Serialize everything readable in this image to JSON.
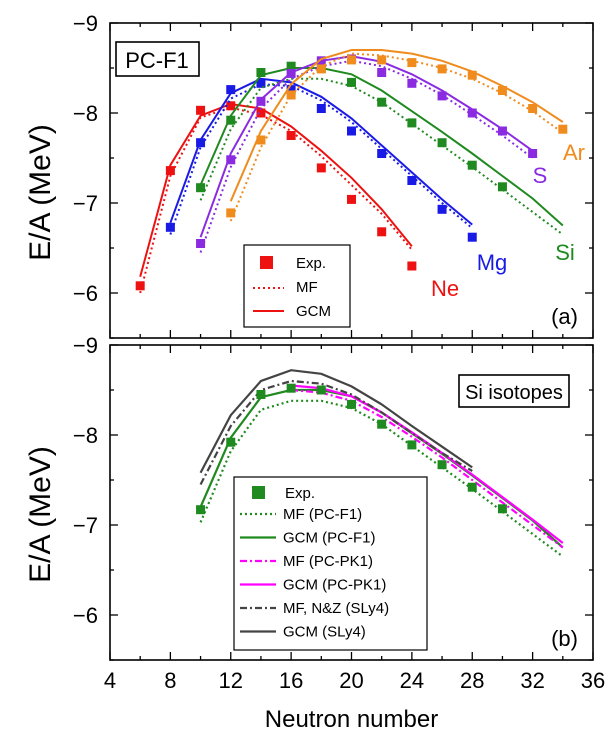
{
  "chart_data": [
    {
      "type": "line",
      "panel_tag": "(a)",
      "box_label": "PC-F1",
      "ylabel": "E/A (MeV)",
      "xlim": [
        4,
        36
      ],
      "ylim": [
        -5.5,
        -9
      ],
      "yticks": [
        -6,
        -7,
        -8,
        -9
      ],
      "yticklabels": [
        "-6",
        "-7",
        "-8",
        "-9"
      ],
      "legend": {
        "placement": "lower-center",
        "entries": [
          "Exp.",
          "MF",
          "GCM"
        ]
      },
      "series": [
        {
          "name": "Ne",
          "color": "#ee1111",
          "exp": {
            "x": [
              6,
              8,
              10,
              12,
              14,
              16,
              18,
              20,
              22,
              24
            ],
            "y": [
              -6.08,
              -7.36,
              -8.03,
              -8.08,
              -8.0,
              -7.75,
              -7.39,
              -7.04,
              -6.68,
              -6.3
            ]
          },
          "mf": {
            "x": [
              6,
              8,
              10,
              12,
              14,
              16,
              18,
              20,
              22,
              24
            ],
            "y": [
              -6.0,
              -7.3,
              -7.95,
              -8.06,
              -7.98,
              -7.8,
              -7.52,
              -7.2,
              -6.88,
              -6.48
            ]
          },
          "gcm": {
            "x": [
              6,
              8,
              10,
              12,
              14,
              16,
              18,
              20,
              22,
              24
            ],
            "y": [
              -6.18,
              -7.42,
              -7.97,
              -8.1,
              -8.05,
              -7.85,
              -7.58,
              -7.28,
              -6.93,
              -6.52
            ]
          }
        },
        {
          "name": "Mg",
          "color": "#1a1ae6",
          "exp": {
            "x": [
              8,
              10,
              12,
              14,
              16,
              18,
              20,
              22,
              24,
              26,
              28
            ],
            "y": [
              -6.73,
              -7.67,
              -8.26,
              -8.33,
              -8.26,
              -8.05,
              -7.8,
              -7.55,
              -7.25,
              -6.93,
              -6.62
            ]
          },
          "mf": {
            "x": [
              8,
              10,
              12,
              14,
              16,
              18,
              20,
              22,
              24,
              26,
              28
            ],
            "y": [
              -6.65,
              -7.62,
              -8.16,
              -8.32,
              -8.3,
              -8.14,
              -7.9,
              -7.6,
              -7.3,
              -7.0,
              -6.72
            ]
          },
          "gcm": {
            "x": [
              8,
              10,
              12,
              14,
              16,
              18,
              20,
              22,
              24,
              26,
              28
            ],
            "y": [
              -6.78,
              -7.7,
              -8.22,
              -8.38,
              -8.34,
              -8.18,
              -7.94,
              -7.64,
              -7.34,
              -7.04,
              -6.76
            ]
          }
        },
        {
          "name": "Si",
          "color": "#1f8a1f",
          "exp": {
            "x": [
              10,
              12,
              14,
              16,
              18,
              20,
              22,
              24,
              26,
              28,
              30
            ],
            "y": [
              -7.17,
              -7.92,
              -8.45,
              -8.52,
              -8.5,
              -8.34,
              -8.12,
              -7.89,
              -7.67,
              -7.42,
              -7.18
            ]
          },
          "mf": {
            "x": [
              10,
              12,
              14,
              16,
              18,
              20,
              22,
              24,
              26,
              28,
              30,
              32,
              34
            ],
            "y": [
              -7.03,
              -7.82,
              -8.28,
              -8.38,
              -8.38,
              -8.3,
              -8.12,
              -7.88,
              -7.64,
              -7.4,
              -7.15,
              -6.9,
              -6.65
            ]
          },
          "gcm": {
            "x": [
              10,
              12,
              14,
              16,
              18,
              20,
              22,
              24,
              26,
              28,
              30,
              32,
              34
            ],
            "y": [
              -7.2,
              -7.97,
              -8.42,
              -8.5,
              -8.5,
              -8.43,
              -8.25,
              -8.02,
              -7.79,
              -7.55,
              -7.3,
              -7.05,
              -6.75
            ]
          }
        },
        {
          "name": "S",
          "color": "#8a2be2",
          "exp": {
            "x": [
              10,
              12,
              14,
              16,
              18,
              20,
              22,
              24,
              26,
              28,
              30,
              32
            ],
            "y": [
              -6.55,
              -7.48,
              -8.13,
              -8.44,
              -8.58,
              -8.6,
              -8.45,
              -8.33,
              -8.19,
              -8.0,
              -7.8,
              -7.55
            ]
          },
          "mf": {
            "x": [
              10,
              12,
              14,
              16,
              18,
              20,
              22,
              24,
              26,
              28,
              30,
              32
            ],
            "y": [
              -6.45,
              -7.4,
              -8.05,
              -8.38,
              -8.52,
              -8.58,
              -8.52,
              -8.38,
              -8.2,
              -7.98,
              -7.75,
              -7.5
            ]
          },
          "gcm": {
            "x": [
              10,
              12,
              14,
              16,
              18,
              20,
              22,
              24,
              26,
              28,
              30,
              32
            ],
            "y": [
              -6.62,
              -7.55,
              -8.15,
              -8.45,
              -8.58,
              -8.63,
              -8.57,
              -8.43,
              -8.25,
              -8.04,
              -7.82,
              -7.58
            ]
          }
        },
        {
          "name": "Ar",
          "color": "#f08c1e",
          "exp": {
            "x": [
              12,
              14,
              16,
              18,
              20,
              22,
              24,
              26,
              28,
              30,
              32,
              34
            ],
            "y": [
              -6.89,
              -7.7,
              -8.2,
              -8.49,
              -8.59,
              -8.59,
              -8.56,
              -8.49,
              -8.42,
              -8.25,
              -8.05,
              -7.82
            ]
          },
          "mf": {
            "x": [
              12,
              14,
              16,
              18,
              20,
              22,
              24,
              26,
              28,
              30,
              32,
              34
            ],
            "y": [
              -6.8,
              -7.62,
              -8.2,
              -8.52,
              -8.66,
              -8.64,
              -8.58,
              -8.5,
              -8.38,
              -8.22,
              -8.02,
              -7.78
            ]
          },
          "gcm": {
            "x": [
              12,
              14,
              16,
              18,
              20,
              22,
              24,
              26,
              28,
              30,
              32,
              34
            ],
            "y": [
              -7.02,
              -7.8,
              -8.32,
              -8.6,
              -8.7,
              -8.7,
              -8.66,
              -8.58,
              -8.46,
              -8.3,
              -8.12,
              -7.9
            ]
          }
        }
      ]
    },
    {
      "type": "line",
      "panel_tag": "(b)",
      "box_label": "Si isotopes",
      "xlabel": "Neutron number",
      "ylabel": "E/A (MeV)",
      "xlim": [
        4,
        36
      ],
      "ylim": [
        -5.5,
        -9
      ],
      "xticks": [
        4,
        8,
        12,
        16,
        20,
        24,
        28,
        32,
        36
      ],
      "xticklabels": [
        "4",
        "8",
        "12",
        "16",
        "20",
        "24",
        "28",
        "32",
        "36"
      ],
      "yticks": [
        -6,
        -7,
        -8,
        -9
      ],
      "yticklabels": [
        "-6",
        "-7",
        "-8",
        "-9"
      ],
      "legend": {
        "placement": "lower-center",
        "entries": [
          "Exp.",
          "MF (PC-F1)",
          "GCM (PC-F1)",
          "MF (PC-PK1)",
          "GCM (PC-PK1)",
          "MF, N&Z (SLy4)",
          "GCM (SLy4)"
        ]
      },
      "exp": {
        "name": "Exp.",
        "color": "#1f8a1f",
        "x": [
          10,
          12,
          14,
          16,
          18,
          20,
          22,
          24,
          26,
          28,
          30
        ],
        "y": [
          -7.17,
          -7.92,
          -8.45,
          -8.52,
          -8.5,
          -8.34,
          -8.12,
          -7.89,
          -7.67,
          -7.42,
          -7.18
        ]
      },
      "series": [
        {
          "name": "MF (PC-F1)",
          "color": "#1f8a1f",
          "style": "dotted",
          "x": [
            10,
            12,
            14,
            16,
            18,
            20,
            22,
            24,
            26,
            28,
            30,
            32,
            34
          ],
          "y": [
            -7.03,
            -7.82,
            -8.28,
            -8.38,
            -8.38,
            -8.3,
            -8.12,
            -7.88,
            -7.64,
            -7.4,
            -7.15,
            -6.9,
            -6.65
          ]
        },
        {
          "name": "GCM (PC-F1)",
          "color": "#1f8a1f",
          "style": "solid",
          "x": [
            10,
            12,
            14,
            16,
            18,
            20,
            22,
            24,
            26,
            28,
            30,
            32,
            34
          ],
          "y": [
            -7.2,
            -7.97,
            -8.42,
            -8.5,
            -8.5,
            -8.43,
            -8.25,
            -8.02,
            -7.79,
            -7.55,
            -7.3,
            -7.05,
            -6.75
          ]
        },
        {
          "name": "MF (PC-PK1)",
          "color": "#ff00ff",
          "style": "dashdot",
          "x": [
            16,
            18,
            20,
            22,
            24,
            26,
            28,
            30,
            32,
            34
          ],
          "y": [
            -8.5,
            -8.47,
            -8.38,
            -8.2,
            -7.98,
            -7.75,
            -7.5,
            -7.25,
            -7.0,
            -6.75
          ]
        },
        {
          "name": "GCM (PC-PK1)",
          "color": "#ff00ff",
          "style": "solid",
          "x": [
            16,
            18,
            20,
            22,
            24,
            26,
            28,
            30,
            32,
            34
          ],
          "y": [
            -8.55,
            -8.52,
            -8.43,
            -8.25,
            -8.03,
            -7.8,
            -7.56,
            -7.31,
            -7.06,
            -6.8
          ]
        },
        {
          "name": "MF, N&Z (SLy4)",
          "color": "#444444",
          "style": "dashdot",
          "x": [
            10,
            12,
            14,
            16,
            18,
            20,
            22,
            24,
            26,
            28
          ],
          "y": [
            -7.45,
            -8.1,
            -8.5,
            -8.6,
            -8.57,
            -8.45,
            -8.25,
            -8.02,
            -7.8,
            -7.6
          ]
        },
        {
          "name": "GCM (SLy4)",
          "color": "#444444",
          "style": "solid",
          "x": [
            10,
            12,
            14,
            16,
            18,
            20,
            22,
            24,
            26,
            28
          ],
          "y": [
            -7.58,
            -8.22,
            -8.6,
            -8.72,
            -8.68,
            -8.54,
            -8.34,
            -8.1,
            -7.87,
            -7.64
          ]
        }
      ]
    }
  ]
}
